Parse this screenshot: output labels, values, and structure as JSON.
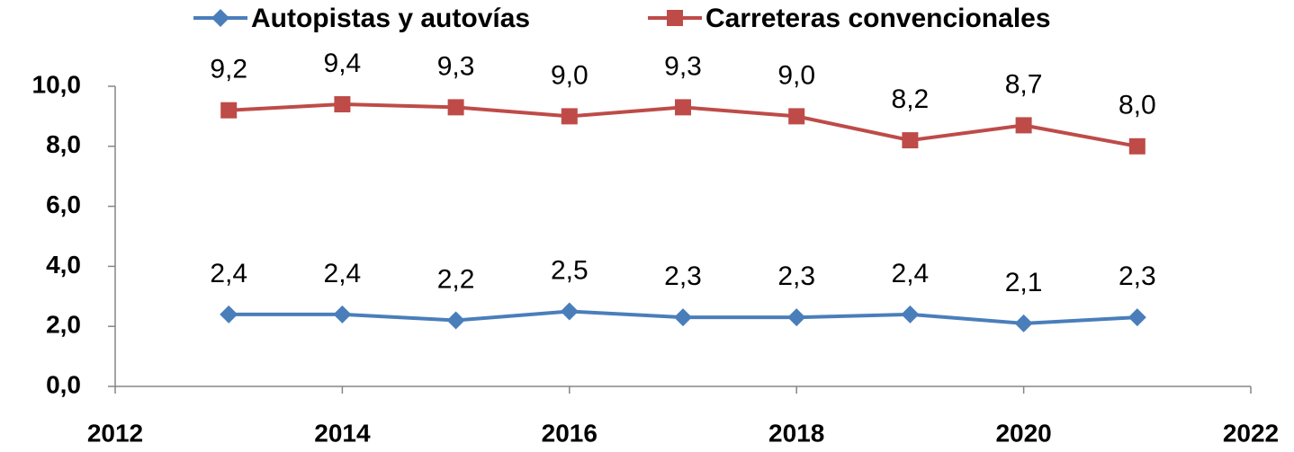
{
  "chart_data": {
    "type": "line",
    "x": [
      2013,
      2014,
      2015,
      2016,
      2017,
      2018,
      2019,
      2020,
      2021
    ],
    "series": [
      {
        "name": "Autopistas y autovías",
        "color": "#4a7ebb",
        "marker": "diamond",
        "values": [
          2.4,
          2.4,
          2.2,
          2.5,
          2.3,
          2.3,
          2.4,
          2.1,
          2.3
        ],
        "value_labels": [
          "2,4",
          "2,4",
          "2,2",
          "2,5",
          "2,3",
          "2,3",
          "2,4",
          "2,1",
          "2,3"
        ]
      },
      {
        "name": "Carreteras convencionales",
        "color": "#be4b48",
        "marker": "square",
        "values": [
          9.2,
          9.4,
          9.3,
          9.0,
          9.3,
          9.0,
          8.2,
          8.7,
          8.0
        ],
        "value_labels": [
          "9,2",
          "9,4",
          "9,3",
          "9,0",
          "9,3",
          "9,0",
          "8,2",
          "8,7",
          "8,0"
        ]
      }
    ],
    "xlim": [
      2012,
      2022
    ],
    "xticks": [
      2012,
      2014,
      2016,
      2018,
      2020,
      2022
    ],
    "ylim": [
      0,
      10
    ],
    "yticks": [
      {
        "value": 0,
        "label": "0,0"
      },
      {
        "value": 2,
        "label": "2,0"
      },
      {
        "value": 4,
        "label": "4,0"
      },
      {
        "value": 6,
        "label": "6,0"
      },
      {
        "value": 8,
        "label": "8,0"
      },
      {
        "value": 10,
        "label": "10,0"
      }
    ],
    "grid": false,
    "legend": "top"
  }
}
